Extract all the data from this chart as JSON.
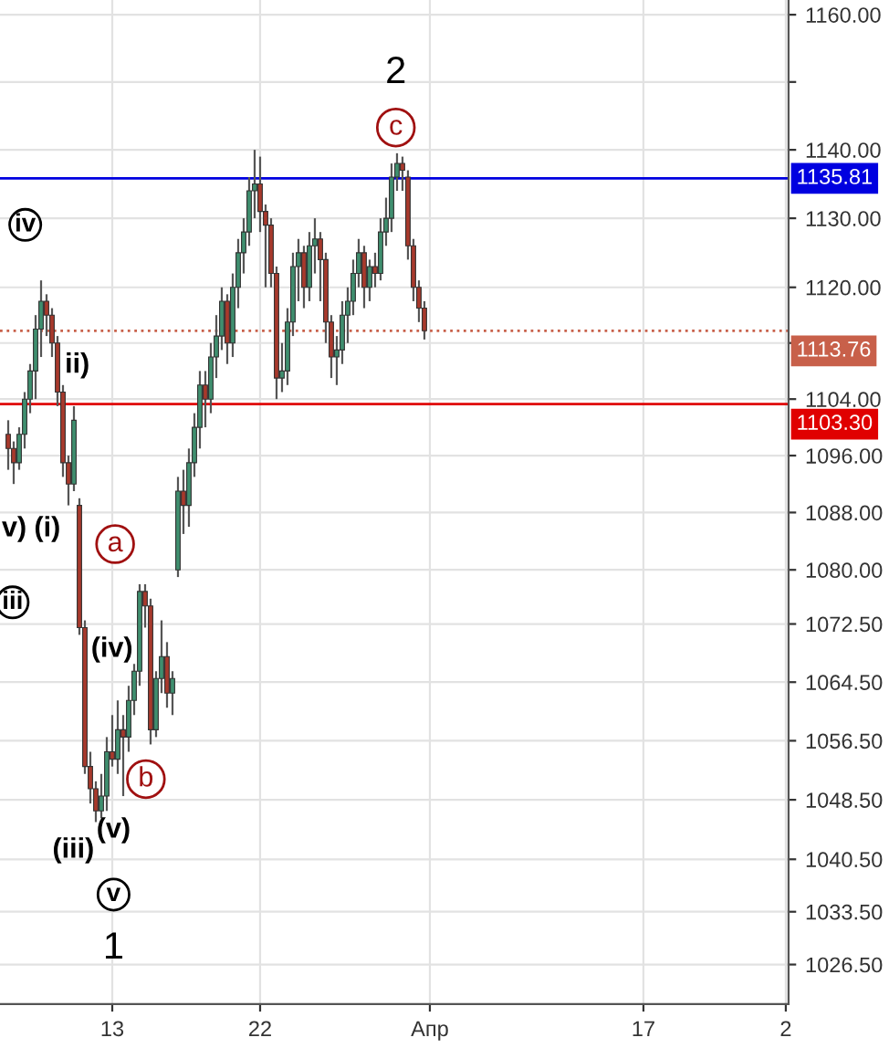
{
  "chart_data": {
    "type": "candlestick",
    "categories": [
      null,
      null,
      null,
      null,
      null,
      null,
      null,
      null,
      null,
      null,
      null,
      null,
      null,
      null,
      null,
      null,
      null,
      null,
      null,
      null,
      "13",
      null,
      null,
      null,
      null,
      null,
      null,
      null,
      null,
      null,
      null,
      null,
      null,
      null,
      null,
      null,
      null,
      null,
      null,
      null,
      null,
      null,
      null,
      null,
      null,
      null,
      null,
      "22",
      null,
      null,
      null,
      null,
      null,
      null,
      null,
      null,
      null,
      null,
      null,
      null,
      null,
      null,
      null,
      null,
      null,
      null,
      null,
      null,
      null,
      null,
      null,
      null,
      null,
      null,
      null,
      null,
      null,
      null,
      "Апр",
      null,
      null,
      null,
      null,
      null,
      null,
      null,
      null,
      null,
      null,
      null,
      null,
      null,
      null,
      null,
      null,
      null,
      null,
      null,
      null,
      null,
      null,
      null,
      null,
      null,
      null,
      null,
      null,
      null,
      null,
      null,
      null,
      null,
      null,
      null,
      null,
      null,
      null,
      "17",
      null,
      null,
      null,
      null,
      null,
      null,
      null,
      null,
      null,
      null,
      null,
      null,
      null,
      null,
      null,
      null,
      null,
      null,
      null,
      null,
      null,
      null,
      null,
      null,
      null,
      "2"
    ],
    "ylim": [
      1021.3,
      1162.2
    ],
    "log": true,
    "yticks": [
      {
        "value": 1160,
        "label": "1160.00"
      },
      {
        "value": 1150,
        "label": null
      },
      {
        "value": 1140,
        "label": "1140.00"
      },
      {
        "value": 1130,
        "label": "1130.00"
      },
      {
        "value": 1120,
        "label": "1120.00"
      },
      {
        "value": 1112,
        "label": null
      },
      {
        "value": 1104,
        "label": "1104.00"
      },
      {
        "value": 1096,
        "label": "1096.00"
      },
      {
        "value": 1088,
        "label": "1088.00"
      },
      {
        "value": 1080,
        "label": "1080.00"
      },
      {
        "value": 1072.5,
        "label": "1072.50"
      },
      {
        "value": 1064.5,
        "label": "1064.50"
      },
      {
        "value": 1056.5,
        "label": "1056.50"
      },
      {
        "value": 1048.5,
        "label": "1048.50"
      },
      {
        "value": 1040.5,
        "label": "1040.50"
      },
      {
        "value": 1033.5,
        "label": "1033.50"
      },
      {
        "value": 1026.5,
        "label": "1026.50"
      }
    ],
    "grid": true,
    "ohlc": [
      null,
      [
        1099,
        1101,
        1094,
        1097
      ],
      [
        1097,
        1098,
        1092,
        1095
      ],
      [
        1095,
        1100,
        1094,
        1099
      ],
      [
        1099,
        1105,
        1097,
        1104
      ],
      [
        1104,
        1109,
        1102,
        1108
      ],
      [
        1108,
        1116,
        1104,
        1114
      ],
      [
        1114,
        1121,
        1110,
        1118
      ],
      [
        1118,
        1119,
        1113,
        1116
      ],
      [
        1116,
        1117,
        1110,
        1112
      ],
      [
        1112,
        1113,
        1103,
        1105
      ],
      [
        1105,
        1106,
        1093,
        1095
      ],
      [
        1095,
        1096,
        1089,
        1092
      ],
      [
        1092,
        1103,
        1091,
        1101
      ],
      [
        1089,
        1090,
        1071,
        1072
      ],
      [
        1072,
        1073,
        1052,
        1053
      ],
      [
        1053,
        1055,
        1048,
        1050
      ],
      [
        1050,
        1051,
        1045.5,
        1047
      ],
      [
        1047,
        1052,
        1046,
        1049
      ],
      [
        1049,
        1057,
        1047,
        1055
      ],
      [
        1055,
        1060,
        1053,
        1054
      ],
      [
        1054,
        1062,
        1052,
        1058
      ],
      [
        1058,
        1060,
        1049,
        1057
      ],
      [
        1057,
        1064,
        1055,
        1062
      ],
      [
        1062,
        1067,
        1060,
        1066
      ],
      [
        1066,
        1078,
        1064,
        1077
      ],
      [
        1077,
        1078,
        1072,
        1075
      ],
      [
        1075,
        1076,
        1056,
        1058
      ],
      [
        1058,
        1066,
        1057,
        1065
      ],
      [
        1065,
        1073,
        1063,
        1068
      ],
      [
        1068,
        1070,
        1061,
        1063
      ],
      [
        1063,
        1066,
        1060,
        1065
      ],
      [
        1080,
        1093,
        1079,
        1091
      ],
      [
        1091,
        1094,
        1085,
        1089
      ],
      [
        1089,
        1097,
        1086,
        1095
      ],
      [
        1095,
        1102,
        1093,
        1100
      ],
      [
        1100,
        1108,
        1097,
        1106
      ],
      [
        1106,
        1108,
        1100,
        1104
      ],
      [
        1104,
        1112,
        1102,
        1110
      ],
      [
        1110,
        1116,
        1107,
        1113
      ],
      [
        1113,
        1120,
        1111,
        1118
      ],
      [
        1118,
        1119,
        1109,
        1112
      ],
      [
        1112,
        1122,
        1110,
        1120
      ],
      [
        1120,
        1127,
        1117,
        1125
      ],
      [
        1125,
        1130,
        1122,
        1128
      ],
      [
        1128,
        1136,
        1126,
        1134
      ],
      [
        1134,
        1140,
        1130,
        1135
      ],
      [
        1135,
        1139,
        1128,
        1131
      ],
      [
        1131,
        1132,
        1120,
        1129
      ],
      [
        1129,
        1130,
        1120,
        1122
      ],
      [
        1122,
        1123,
        1104,
        1107
      ],
      [
        1107,
        1112,
        1105,
        1108
      ],
      [
        1108,
        1117,
        1106,
        1115
      ],
      [
        1115,
        1125,
        1113,
        1123
      ],
      [
        1123,
        1127,
        1118,
        1125
      ],
      [
        1125,
        1126,
        1117,
        1120
      ],
      [
        1120,
        1128,
        1118,
        1126
      ],
      [
        1126,
        1130,
        1122,
        1127
      ],
      [
        1127,
        1128,
        1118,
        1124
      ],
      [
        1124,
        1125,
        1112,
        1115
      ],
      [
        1115,
        1116,
        1107,
        1110
      ],
      [
        1110,
        1113,
        1106,
        1111
      ],
      [
        1111,
        1118,
        1109,
        1116
      ],
      [
        1116,
        1120,
        1112,
        1118
      ],
      [
        1118,
        1124,
        1116,
        1122
      ],
      [
        1122,
        1127,
        1120,
        1125
      ],
      [
        1125,
        1126,
        1117,
        1120
      ],
      [
        1120,
        1124,
        1118,
        1123
      ],
      [
        1123,
        1125,
        1120,
        1122
      ],
      [
        1122,
        1130,
        1121,
        1128
      ],
      [
        1128,
        1133,
        1126,
        1130
      ],
      [
        1130,
        1138,
        1128,
        1136
      ],
      [
        1136,
        1139.5,
        1134,
        1138
      ],
      [
        1138,
        1139,
        1134,
        1137
      ],
      [
        1136,
        1137,
        1124,
        1126
      ],
      [
        1126,
        1127,
        1118,
        1120
      ],
      [
        1120,
        1121,
        1115,
        1117
      ],
      [
        1117,
        1118,
        1112.5,
        1113.76
      ],
      null,
      null,
      null,
      null,
      null,
      null,
      null,
      null,
      null,
      null,
      null,
      null,
      null,
      null,
      null,
      null,
      null,
      null,
      null,
      null,
      null,
      null,
      null,
      null,
      null,
      null,
      null,
      null,
      null,
      null,
      null,
      null,
      null,
      null,
      null,
      null,
      null,
      null,
      null,
      null,
      null,
      null,
      null,
      null,
      null,
      null,
      null,
      null,
      null,
      null,
      null,
      null,
      null,
      null,
      null,
      null,
      null,
      null,
      null,
      null,
      null,
      null,
      null,
      null,
      null,
      null
    ],
    "colors": [
      null,
      "#a8392c",
      "#a8392c",
      "#3f8f6f",
      "#3f8f6f",
      "#3f8f6f",
      "#3f8f6f",
      "#3f8f6f",
      "#a8392c",
      "#a8392c",
      "#a8392c",
      "#a8392c",
      "#a8392c",
      "#3f8f6f",
      "#a8392c",
      "#a8392c",
      "#a8392c",
      "#a8392c",
      "#3f8f6f",
      "#3f8f6f",
      "#a8392c",
      "#3f8f6f",
      "#a8392c",
      "#3f8f6f",
      "#3f8f6f",
      "#3f8f6f",
      "#a8392c",
      "#a8392c",
      "#3f8f6f",
      "#3f8f6f",
      "#a8392c",
      "#3f8f6f",
      "#3f8f6f",
      "#a8392c",
      "#3f8f6f",
      "#3f8f6f",
      "#3f8f6f",
      "#a8392c",
      "#3f8f6f",
      "#3f8f6f",
      "#3f8f6f",
      "#a8392c",
      "#3f8f6f",
      "#3f8f6f",
      "#3f8f6f",
      "#3f8f6f",
      "#3f8f6f",
      "#a8392c",
      "#a8392c",
      "#a8392c",
      "#a8392c",
      "#3f8f6f",
      "#3f8f6f",
      "#3f8f6f",
      "#3f8f6f",
      "#a8392c",
      "#3f8f6f",
      "#3f8f6f",
      "#a8392c",
      "#a8392c",
      "#a8392c",
      "#3f8f6f",
      "#3f8f6f",
      "#3f8f6f",
      "#3f8f6f",
      "#3f8f6f",
      "#a8392c",
      "#3f8f6f",
      "#a8392c",
      "#3f8f6f",
      "#3f8f6f",
      "#3f8f6f",
      "#3f8f6f",
      "#a8392c",
      "#a8392c",
      "#a8392c",
      "#a8392c",
      "#a8392c",
      null,
      null,
      null,
      null,
      null,
      null,
      null,
      null,
      null,
      null,
      null,
      null,
      null,
      null,
      null,
      null,
      null,
      null,
      null,
      null,
      null,
      null,
      null,
      null,
      null,
      null,
      null,
      null,
      null,
      null,
      null,
      null,
      null,
      null,
      null,
      null,
      null,
      null,
      null,
      null,
      null,
      null,
      null,
      null,
      null,
      null,
      null,
      null,
      null,
      null,
      null,
      null,
      null,
      null,
      null,
      null,
      null,
      null,
      null,
      null,
      null,
      null,
      null,
      null,
      null,
      null
    ],
    "ref_lines": [
      {
        "axis": "y",
        "value": 1135.81,
        "label": "1135.81",
        "color": "#0000e0",
        "line_style": "solid"
      },
      {
        "axis": "y",
        "value": 1113.76,
        "label": "1113.76",
        "color": "#c8604a",
        "line_style": "dotted"
      },
      {
        "axis": "y",
        "value": 1103.3,
        "label": "1103.30",
        "color": "#e00000",
        "line_style": "solid"
      }
    ],
    "annotations": [
      "2",
      "c",
      "iv",
      "ii)",
      "v)",
      "(i)",
      "iii",
      "a",
      "(iv)",
      "b",
      "(iii)",
      "(v)",
      "v",
      "1"
    ]
  }
}
